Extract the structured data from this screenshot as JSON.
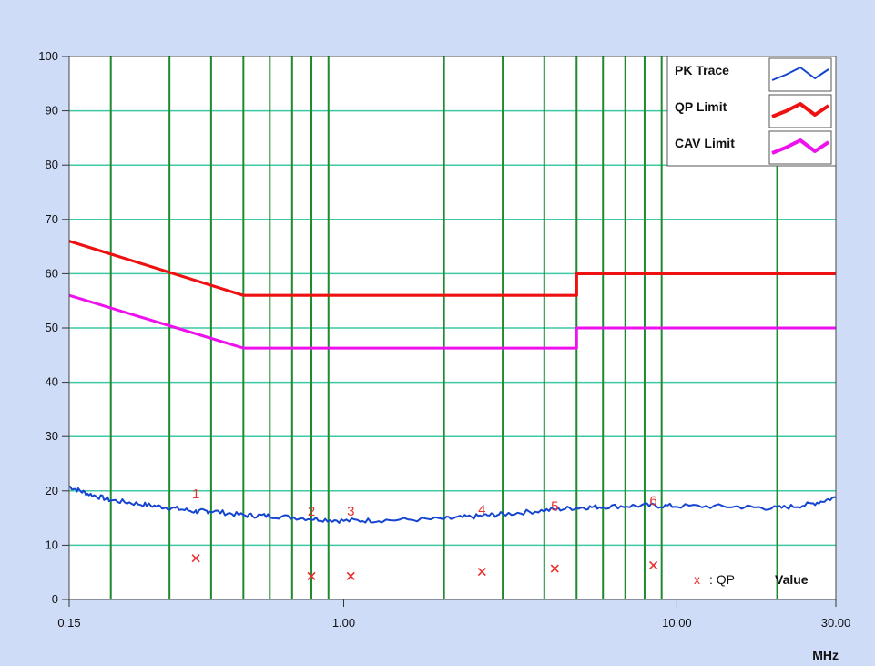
{
  "chart_data": {
    "type": "line",
    "xscale": "log",
    "xlim": [
      0.15,
      30.0
    ],
    "ylim": [
      0,
      100
    ],
    "yticks": [
      "0",
      "10",
      "20",
      "30",
      "40",
      "50",
      "60",
      "70",
      "80",
      "90",
      "100"
    ],
    "xticks": [
      {
        "value": 0.15,
        "label": "0.15"
      },
      {
        "value": 1.0,
        "label": "1.00"
      },
      {
        "value": 10.0,
        "label": "10.00"
      },
      {
        "value": 30.0,
        "label": "30.00"
      }
    ],
    "xunit": "MHz",
    "vgrid": [
      0.2,
      0.3,
      0.4,
      0.5,
      0.6,
      0.7,
      0.8,
      0.9,
      2,
      3,
      4,
      5,
      6,
      7,
      8,
      9,
      20
    ],
    "colors": {
      "background": "#cfdcf7",
      "plot_bg": "#ffffff",
      "hgrid": "#3dc9a4",
      "vgrid": "#1d8a2e",
      "pk": "#1545d0",
      "qp_limit": "#ee1111",
      "cav_limit": "#ee11ee",
      "marker": "#e83030"
    },
    "legend": {
      "position": "top-right",
      "entries": [
        {
          "label": "PK Trace",
          "series": "pk",
          "width": 1
        },
        {
          "label": "QP Limit",
          "series": "qp_limit",
          "width": 3
        },
        {
          "label": "CAV Limit",
          "series": "cav_limit",
          "width": 3
        }
      ]
    },
    "series": [
      {
        "key": "qp_limit",
        "points": [
          [
            0.15,
            66
          ],
          [
            0.5,
            56
          ],
          [
            5.0,
            56
          ],
          [
            5.0,
            60
          ],
          [
            30.0,
            60
          ]
        ]
      },
      {
        "key": "cav_limit",
        "points": [
          [
            0.15,
            56
          ],
          [
            0.5,
            46.3
          ],
          [
            5.0,
            46.3
          ],
          [
            5.0,
            50
          ],
          [
            30.0,
            50
          ]
        ]
      },
      {
        "key": "pk",
        "points": [
          [
            0.15,
            20.8
          ],
          [
            0.17,
            19.5
          ],
          [
            0.2,
            18.3
          ],
          [
            0.25,
            17.5
          ],
          [
            0.3,
            16.9
          ],
          [
            0.36,
            16.2
          ],
          [
            0.4,
            16.3
          ],
          [
            0.5,
            15.5
          ],
          [
            0.6,
            15.4
          ],
          [
            0.8,
            14.9
          ],
          [
            1.0,
            14.5
          ],
          [
            1.3,
            14.6
          ],
          [
            2.0,
            14.8
          ],
          [
            2.5,
            15.3
          ],
          [
            3.0,
            15.7
          ],
          [
            4.0,
            16.4
          ],
          [
            5.0,
            16.9
          ],
          [
            6.0,
            17.1
          ],
          [
            8.0,
            17.3
          ],
          [
            10.0,
            17.2
          ],
          [
            15.0,
            17.1
          ],
          [
            20.0,
            16.8
          ],
          [
            25.0,
            17.5
          ],
          [
            30.0,
            18.8
          ]
        ]
      }
    ],
    "peak_markers": [
      {
        "label": "1",
        "x": 0.36,
        "y": 18.6
      },
      {
        "label": "2",
        "x": 0.8,
        "y": 15.4
      },
      {
        "label": "3",
        "x": 1.05,
        "y": 15.4
      },
      {
        "label": "4",
        "x": 2.6,
        "y": 15.7
      },
      {
        "label": "5",
        "x": 4.3,
        "y": 16.4
      },
      {
        "label": "6",
        "x": 8.5,
        "y": 17.4
      }
    ],
    "qp_points": [
      {
        "x": 0.36,
        "y": 7.6
      },
      {
        "x": 0.8,
        "y": 4.3
      },
      {
        "x": 1.05,
        "y": 4.3
      },
      {
        "x": 2.6,
        "y": 5.1
      },
      {
        "x": 4.3,
        "y": 5.7
      },
      {
        "x": 8.5,
        "y": 6.3
      }
    ],
    "qp_legend": {
      "symbol": "x",
      "label": ": QP",
      "value_label": "Value"
    }
  }
}
